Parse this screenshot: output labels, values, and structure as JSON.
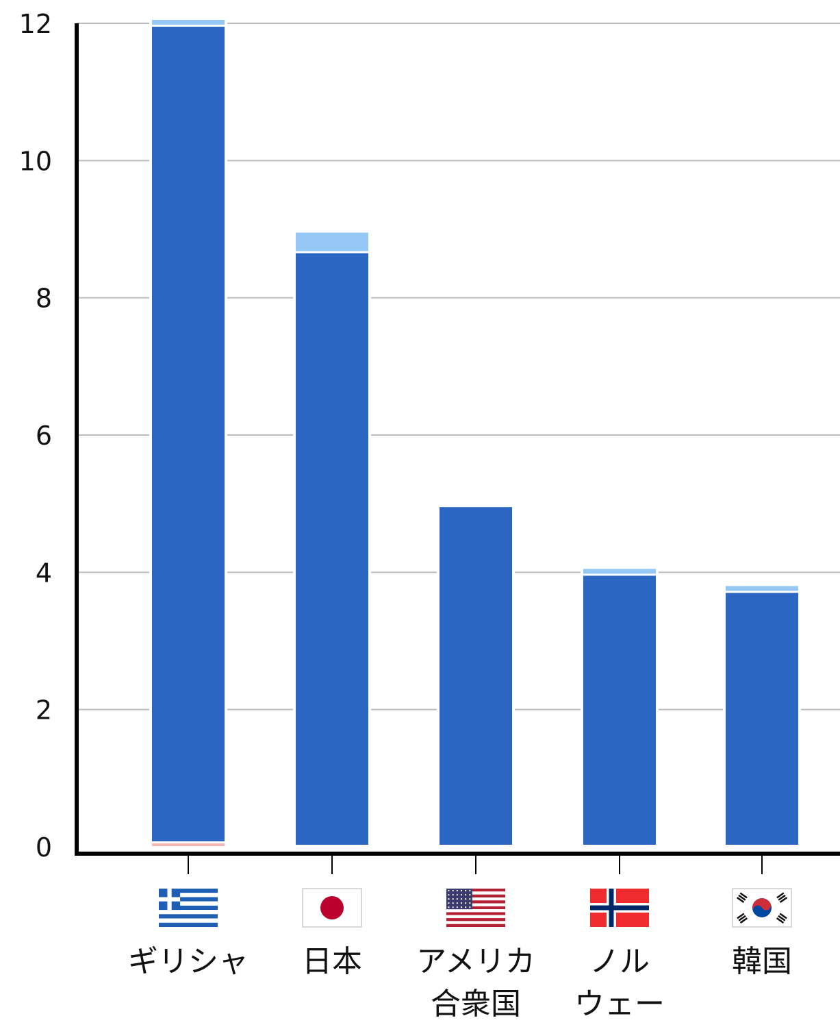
{
  "chart_data": {
    "type": "bar",
    "stacked": true,
    "title": "",
    "xlabel": "",
    "ylabel": "",
    "ylim": [
      0,
      12
    ],
    "yticks": [
      0,
      2,
      4,
      6,
      8,
      10,
      12
    ],
    "grid": true,
    "categories": [
      {
        "label_lines": [
          "ギリシャ"
        ],
        "flag": "greece-flag-icon"
      },
      {
        "label_lines": [
          "日本"
        ],
        "flag": "japan-flag-icon"
      },
      {
        "label_lines": [
          "アメリカ",
          "合衆国"
        ],
        "flag": "usa-flag-icon"
      },
      {
        "label_lines": [
          "ノル",
          "ウェー"
        ],
        "flag": "norway-flag-icon"
      },
      {
        "label_lines": [
          "韓国"
        ],
        "flag": "south-korea-flag-icon"
      }
    ],
    "series": [
      {
        "color": "#f4b6b6",
        "values": [
          0.05,
          0,
          0,
          0,
          0
        ]
      },
      {
        "color": "#2c66c3",
        "values": [
          11.9,
          8.65,
          4.95,
          3.95,
          3.7
        ]
      },
      {
        "color": "#96c8f6",
        "values": [
          0.1,
          0.3,
          0,
          0.1,
          0.1
        ]
      }
    ]
  }
}
